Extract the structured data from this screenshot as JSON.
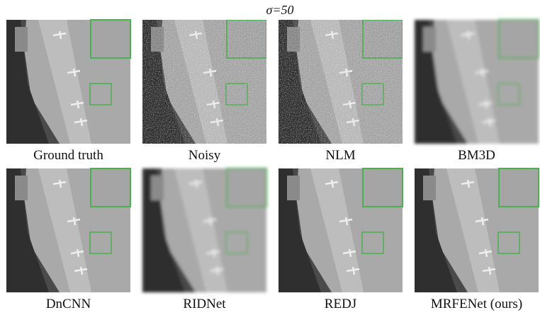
{
  "title": "σ=50",
  "panels": [
    {
      "caption": "Ground truth"
    },
    {
      "caption": "Noisy"
    },
    {
      "caption": "NLM"
    },
    {
      "caption": "BM3D"
    },
    {
      "caption": "DnCNN"
    },
    {
      "caption": "RIDNet"
    },
    {
      "caption": "REDJ"
    },
    {
      "caption": "MRFENet (ours)"
    }
  ]
}
